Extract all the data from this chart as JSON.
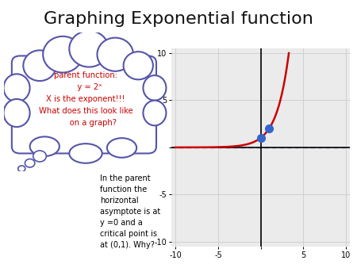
{
  "title": "Graphing Exponential function",
  "title_fontsize": 16,
  "xlim": [
    -10.5,
    10.5
  ],
  "ylim": [
    -10.5,
    10.5
  ],
  "x_ticks": [
    -10,
    -5,
    0,
    5,
    10
  ],
  "y_ticks": [
    -10,
    -5,
    0,
    5,
    10
  ],
  "grid_color": "#cccccc",
  "axis_color": "#000000",
  "curve_color": "#cc0000",
  "arrow_color": "#6633aa",
  "point_color": "#3366cc",
  "cloud_text": "parent function:\n   y = 2ˣ\nX is the exponent!!!\nWhat does this look like\n      on a graph?",
  "cloud_text_color": "#cc0000",
  "bottom_text": "In the parent\nfunction the\nhorizontal\nasymptote is at\ny =0 and a\ncritical point is\nat (0,1). Why?",
  "bottom_text_color": "#000000",
  "background_color": "#ffffff",
  "point1": [
    0,
    1
  ],
  "point2": [
    1,
    2
  ]
}
